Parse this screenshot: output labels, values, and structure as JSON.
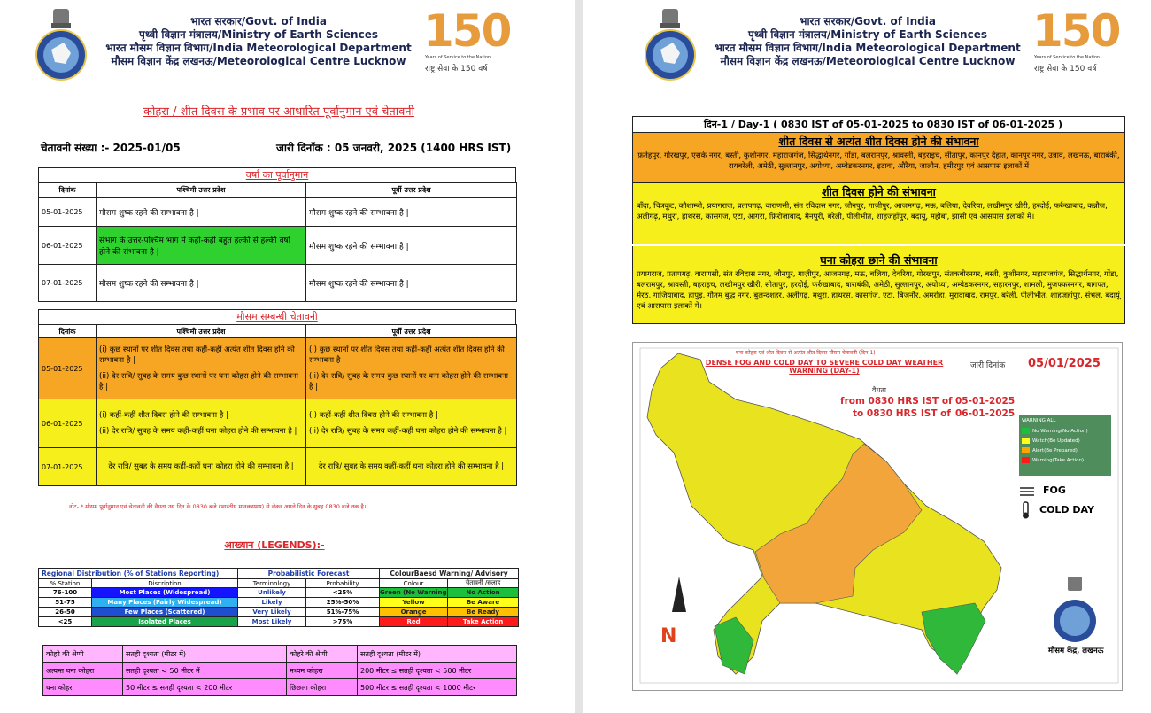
{
  "header": {
    "line1": "भारत सरकार/Govt. of India",
    "line2": "पृथ्वी विज्ञान मंत्रालय/Ministry of Earth Sciences",
    "line3": "भारत मौसम विज्ञान विभाग/India Meteorological Department",
    "line4": "मौसम विज्ञान केंद्र लखनऊ/Meteorological Centre Lucknow",
    "logo_number": "150",
    "logo_tagline": "Years of Service to the Nation",
    "logo_hindi": "राष्ट्र सेवा के 150 वर्ष"
  },
  "left_page": {
    "title": "कोहरा / शीत दिवस के प्रभाव पर आधारित पूर्वानुमान एवं चेतावनी",
    "warning_number": "चेतावनी संख्या :- 2025-01/05",
    "issue_date": "जारी दिनाँक : 05 जनवरी, 2025 (1400 HRS IST)",
    "rain_forecast": {
      "title": "वर्षा का पूर्वानुमान",
      "columns": [
        "दिनांक",
        "पश्चिमी उत्तर प्रदेश",
        "पूर्वी उत्तर प्रदेश"
      ],
      "rows": [
        [
          "05-01-2025",
          "मौसम शुष्क रहने की सम्भावना है |",
          "मौसम शुष्क रहने की सम्भावना है |"
        ],
        [
          "06-01-2025",
          "संभाग के उत्तर-पश्चिम भाग में कहीं-कहीं बहुत हल्की से हल्की वर्षा होने की संभावना है |",
          "मौसम शुष्क रहने की सम्भावना है |"
        ],
        [
          "07-01-2025",
          "मौसम शुष्क रहने की सम्भावना है |",
          "मौसम शुष्क रहने की सम्भावना है |"
        ]
      ]
    },
    "weather_warning": {
      "title": "मौसम सम्बन्धी चेतावनी",
      "columns": [
        "दिनांक",
        "पश्चिमी उत्तर प्रदेश",
        "पूर्वी उत्तर प्रदेश"
      ],
      "rows": [
        {
          "date": "05-01-2025",
          "west": [
            "(i) कुछ स्थानों पर शीत दिवस तथा कहीं-कहीं अत्यंत शीत दिवस होने की सम्भावना है |",
            "(ii) देर रात्रि/ सुबह के समय कुछ स्थानों पर घना कोहरा होने की सम्भावना है |"
          ],
          "east": [
            "(i) कुछ स्थानों पर शीत दिवस तथा कहीं-कहीं अत्यंत शीत दिवस होने की सम्भावना है |",
            "(ii) देर रात्रि/ सुबह के समय कुछ स्थानों पर घना कोहरा होने की सम्भावना है |"
          ]
        },
        {
          "date": "06-01-2025",
          "west": [
            "(i) कहीं-कहीं शीत दिवस होने की सम्भावना है |",
            "(ii) देर रात्रि/ सुबह के समय कहीं-कहीं घना कोहरा होने की सम्भावना है |"
          ],
          "east": [
            "(i) कहीं-कहीं शीत दिवस होने की सम्भावना है |",
            "(ii) देर रात्रि/ सुबह के समय कहीं-कहीं घना कोहरा होने की सम्भावना है |"
          ]
        },
        {
          "date": "07-01-2025",
          "west": [
            "देर रात्रि/ सुबह के समय कहीं-कहीं घना कोहरा होने की सम्भावना है |"
          ],
          "east": [
            "देर रात्रि/ सुबह के समय कहीं-कहीं घना कोहरा होने की सम्भावना है |"
          ]
        }
      ]
    },
    "note": "नोट- * मौसम पूर्वानुमान एवं चेतावनी की वैधता उस दिन के 0830 बजे (भारतीय मानकसमय) से लेकर अगले दिन के सुबह 0830 बजे तक है।",
    "legends_title": "आख्यान (LEGENDS):-",
    "legend_table": {
      "groups": [
        "Regional Distribution (% of Stations Reporting)",
        "Probabilistic Forecast",
        "ColourBaesd Warning/ Advisory"
      ],
      "columns": [
        "% Station",
        "Discription",
        "Terminology",
        "Probability",
        "Colour",
        "चेतावनी /सलाह"
      ],
      "rows": [
        [
          "76-100",
          "Most Places (Widespread)",
          "Unlikely",
          "<25%",
          "Green (No Warning)",
          "No Action"
        ],
        [
          "51-75",
          "Many Places (Fairly Widespread)",
          "Likely",
          "25%-50%",
          "Yellow",
          "Be Aware"
        ],
        [
          "26-50",
          "Few Places (Scattered)",
          "Very Likely",
          "51%-75%",
          "Orange",
          "Be Ready"
        ],
        [
          "<25",
          "Isolated Places",
          "Most Likely",
          ">75%",
          "Red",
          "Take Action"
        ]
      ]
    },
    "fog_table": {
      "rows": [
        [
          "कोहरे की श्रेणी",
          "सतही दृश्यता (मीटर में)",
          "कोहरे की श्रेणी",
          "सतही दृश्यता (मीटर में)"
        ],
        [
          "अत्यन्त घना कोहरा",
          "सतही दृश्यता < 50 मीटर में",
          "मध्यम कोहरा",
          "200 मीटर ≤ सतही दृश्यता < 500 मीटर"
        ],
        [
          "घना कोहरा",
          "50 मीटर ≤ सतही दृश्यता < 200 मीटर",
          "छिछला कोहरा",
          "500 मीटर ≤ सतही दृश्यता < 1000 मीटर"
        ]
      ]
    }
  },
  "right_page": {
    "day_header": "दिन-1 / Day-1 ( 0830 IST of 05-01-2025 to 0830 IST of 06-01-2025 )",
    "sections": [
      {
        "heading": "शीत दिवस से अत्यंत शीत दिवस होने की संभावना",
        "districts": "फ़तेहपुर, गोरखपुर, एसके नगर, बस्ती, कुशीनगर, महाराजगंज, सिद्धार्थनगर, गोंडा, बलरामपुर, श्रावस्ती, बहराइच, सीतापुर, कानपुर देहात, कानपुर नगर, उन्नाव, लखनऊ, बाराबंकी, रायबरेली, अमेठी, सुल्तानपुर, अयोध्या, अम्बेडकरनगर, इटावा, औरैया, जालौन, हमीरपुर एवं आसपास इलाकों में"
      },
      {
        "heading": "शीत दिवस होने की संभावना",
        "districts": "बाँदा, चित्रकूट, कौशाम्बी, प्रयागराज, प्रतापगढ़, वाराणसी, संत रविदास नगर, जौनपुर, गाज़ीपुर, आजमगढ़, मऊ, बलिया, देवरिया, लखीमपुर खीरी, हरदोई, फर्रुखाबाद, कन्नौज, अलीगढ़, मथुरा, हाथरस, कासगंज, एटा, आगरा, फ़िरोज़ाबाद, मैनपुरी, बरेली, पीलीभीत, शाहजहाँपुर, बदायूं, महोबा, झांसी एवं आसपास इलाकों में।"
      },
      {
        "heading": "घना कोहरा छाने की संभावना",
        "districts": "प्रयागराज, प्रतापगढ़, वाराणसी, संत रविदास नगर, जौनपुर, गाज़ीपुर, आजमगढ़, मऊ, बलिया, देवरिया, गोरखपुर, संतकबीरनगर, बस्ती, कुशीनगर, महाराजगंज, सिद्धार्थनगर, गोंडा, बलरामपुर, श्रावस्ती, बहराइच, लखीमपुर खीरी, सीतापुर, हरदोई, फर्रुखाबाद, बाराबंकी, अमेठी, सुल्तानपुर, अयोध्या, अम्बेडकरनगर, सहारनपुर, शामली, मुज़फ्फरनगर, बागपत, मेरठ, गाजियाबाद, हापुड़, गौतम बुद्ध नगर, बुलन्दशहर, अलीगढ़, मथुरा, हाथरस, कासगंज, एटा, बिजनौर, अमरोहा, मुरादाबाद, रामपुर, बरेली, पीलीभीत, शाहजहांपुर, संभल, बदायूं एवं आसपास इलाकों में।"
      }
    ],
    "map": {
      "hindi_title": "घना कोहरा एवं शीत दिवस से अत्यंत शीत दिवस मौसम चेतावनी (दिन-1)",
      "english_title": "DENSE FOG AND COLD DAY TO SEVERE COLD DAY WEATHER WARNING (DAY-1)",
      "issue_label": "जारी दिनांक",
      "issue_date": "05/01/2025",
      "validity_label": "वैधता",
      "from_label": "from 0830 HRS IST of",
      "from_date": "05-01-2025",
      "to_label": "to 0830 HRS IST of",
      "to_date": "06-01-2025",
      "legend_title": "WARNING ALL",
      "legend_items": [
        "No Warning(No Action)",
        "Watch(Be Updated)",
        "Alert(Be Prepared)",
        "Warning(Take Action)"
      ],
      "fog_label": "FOG",
      "cold_label": "COLD DAY",
      "north": "N",
      "centre": "मौसम केंद्र, लखनऊ"
    }
  }
}
